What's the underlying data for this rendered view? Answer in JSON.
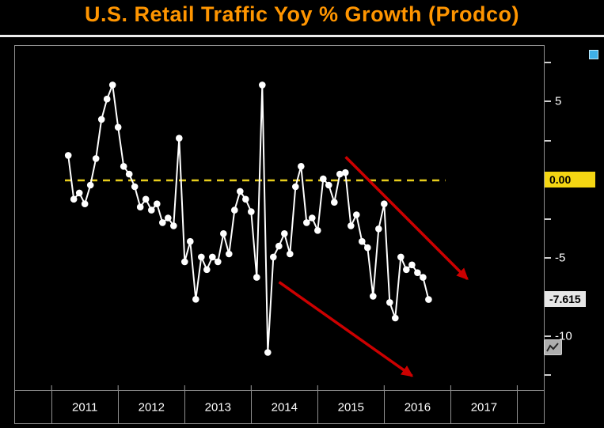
{
  "header": {
    "title": "U.S. Retail Traffic Yoy % Growth (Prodco)",
    "title_color": "#ff9500"
  },
  "chart_data": {
    "type": "line",
    "title": "U.S. Retail Traffic Yoy % Growth (Prodco)",
    "grid": false,
    "legend": null,
    "series": [
      {
        "name": "U.S. Retail Traffic YoY % Growth",
        "frequency": "monthly",
        "start_month": "2011-04",
        "end_month": "2016-09",
        "color": "#ffffff",
        "marker": "circle",
        "values": [
          1.6,
          -1.2,
          -0.8,
          -1.5,
          -0.3,
          1.4,
          3.9,
          5.2,
          6.1,
          3.4,
          0.9,
          0.4,
          -0.4,
          -1.7,
          -1.2,
          -1.9,
          -1.5,
          -2.7,
          -2.4,
          -2.9,
          2.7,
          -5.2,
          -3.9,
          -7.6,
          -4.9,
          -5.7,
          -4.9,
          -5.2,
          -3.4,
          -4.7,
          -1.9,
          -0.7,
          -1.2,
          -2.0,
          -6.2,
          6.1,
          -11.0,
          -4.9,
          -4.2,
          -3.4,
          -4.7,
          -0.4,
          0.9,
          -2.7,
          -2.4,
          -3.2,
          0.1,
          -0.3,
          -1.4,
          0.4,
          0.5,
          -2.9,
          -2.2,
          -3.9,
          -4.3,
          -7.4,
          -3.1,
          -1.5,
          -7.8,
          -8.8,
          -4.9,
          -5.7,
          -5.4,
          -5.9,
          -6.2,
          -7.615
        ]
      }
    ],
    "x_axis": {
      "min_year": 2010.45,
      "max_year": 2018.4,
      "first_label_year": 2011,
      "year_labels": [
        "2011",
        "2012",
        "2013",
        "2014",
        "2015",
        "2016",
        "2017"
      ]
    },
    "y_axis": {
      "min": -13.4,
      "max": 8.6,
      "tick_step": 2.5,
      "ticks": [
        {
          "value": 7.5,
          "label": ""
        },
        {
          "value": 5,
          "label": "5"
        },
        {
          "value": 2.5,
          "label": ""
        },
        {
          "value": 0,
          "label": "0.00",
          "highlight": true
        },
        {
          "value": -2.5,
          "label": ""
        },
        {
          "value": -5,
          "label": "-5"
        },
        {
          "value": -7.5,
          "label": ""
        },
        {
          "value": -10,
          "label": "-10"
        },
        {
          "value": -12.5,
          "label": ""
        }
      ],
      "highlight_bg": "#f4d613",
      "last_value": -7.615,
      "last_value_label": "-7.615",
      "last_value_bg": "#e6e6e6"
    },
    "zero_line": {
      "value": 0,
      "color": "#e8cd1c",
      "dash": [
        9,
        7
      ],
      "x_start_year": 2011.2,
      "x_end_year": 2016.92
    },
    "annotations": [
      {
        "type": "arrow",
        "color": "#cc0000",
        "x1": 2015.42,
        "y1": 1.5,
        "x2": 2017.25,
        "y2": -6.3
      },
      {
        "type": "arrow",
        "color": "#cc0000",
        "x1": 2014.42,
        "y1": -6.5,
        "x2": 2016.42,
        "y2": -12.5
      }
    ]
  },
  "icons": {
    "top_right_square_color": "#3fb0e8",
    "mini_chart_glyph": "zigzag-line"
  }
}
